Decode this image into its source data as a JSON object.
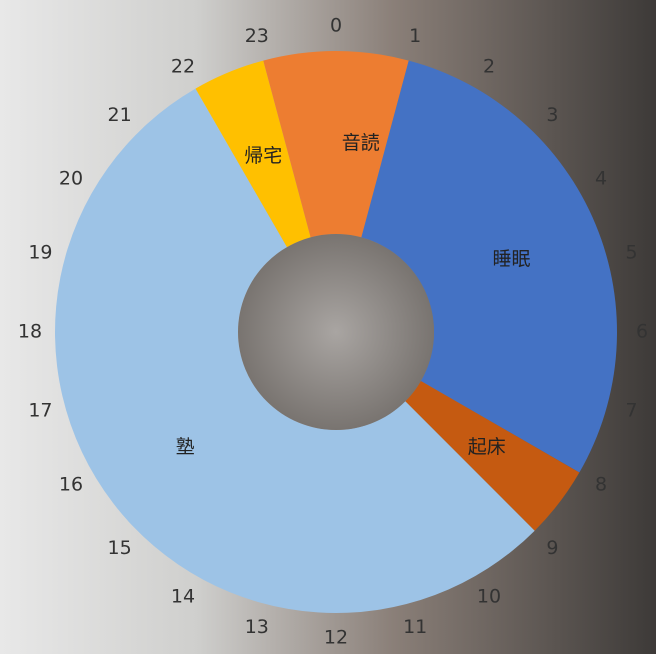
{
  "chart_data": {
    "type": "donut",
    "categories": [
      "音読",
      "睡眠",
      "起床",
      "塾",
      "帰宅",
      null
    ],
    "values": [
      1,
      7,
      1,
      13,
      1,
      1
    ],
    "colors": [
      "#ed7d31",
      "#4472c4",
      "#c55a11",
      "#9dc3e6",
      "#ffc000",
      "#ed7d31"
    ],
    "ticks": [
      0,
      1,
      2,
      3,
      4,
      5,
      6,
      7,
      8,
      9,
      10,
      11,
      12,
      13,
      14,
      15,
      16,
      17,
      18,
      19,
      20,
      21,
      22,
      23
    ]
  }
}
